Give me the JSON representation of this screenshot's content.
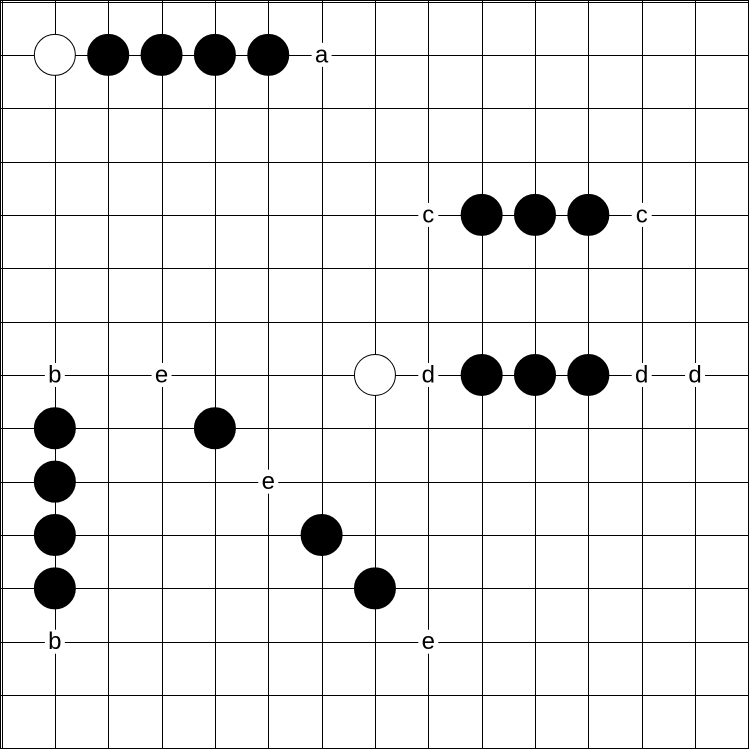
{
  "board": {
    "lines": 14,
    "colors": {
      "background": "#ffffff",
      "line": "#000000",
      "black_stone": "#000000",
      "white_stone": "#ffffff"
    }
  },
  "stones": [
    {
      "color": "white",
      "col": 1,
      "row": 1
    },
    {
      "color": "black",
      "col": 2,
      "row": 1
    },
    {
      "color": "black",
      "col": 3,
      "row": 1
    },
    {
      "color": "black",
      "col": 4,
      "row": 1
    },
    {
      "color": "black",
      "col": 5,
      "row": 1
    },
    {
      "color": "black",
      "col": 9,
      "row": 4
    },
    {
      "color": "black",
      "col": 10,
      "row": 4
    },
    {
      "color": "black",
      "col": 11,
      "row": 4
    },
    {
      "color": "white",
      "col": 7,
      "row": 7
    },
    {
      "color": "black",
      "col": 9,
      "row": 7
    },
    {
      "color": "black",
      "col": 10,
      "row": 7
    },
    {
      "color": "black",
      "col": 11,
      "row": 7
    },
    {
      "color": "black",
      "col": 1,
      "row": 8
    },
    {
      "color": "black",
      "col": 1,
      "row": 9
    },
    {
      "color": "black",
      "col": 1,
      "row": 10
    },
    {
      "color": "black",
      "col": 1,
      "row": 11
    },
    {
      "color": "black",
      "col": 4,
      "row": 8
    },
    {
      "color": "black",
      "col": 6,
      "row": 10
    },
    {
      "color": "black",
      "col": 7,
      "row": 11
    }
  ],
  "marks": [
    {
      "label": "a",
      "col": 6,
      "row": 1
    },
    {
      "label": "c",
      "col": 8,
      "row": 4
    },
    {
      "label": "c",
      "col": 12,
      "row": 4
    },
    {
      "label": "b",
      "col": 1,
      "row": 7
    },
    {
      "label": "e",
      "col": 3,
      "row": 7
    },
    {
      "label": "d",
      "col": 8,
      "row": 7
    },
    {
      "label": "d",
      "col": 12,
      "row": 7
    },
    {
      "label": "d",
      "col": 13,
      "row": 7
    },
    {
      "label": "e",
      "col": 5,
      "row": 9
    },
    {
      "label": "b",
      "col": 1,
      "row": 12
    },
    {
      "label": "e",
      "col": 8,
      "row": 12
    }
  ]
}
